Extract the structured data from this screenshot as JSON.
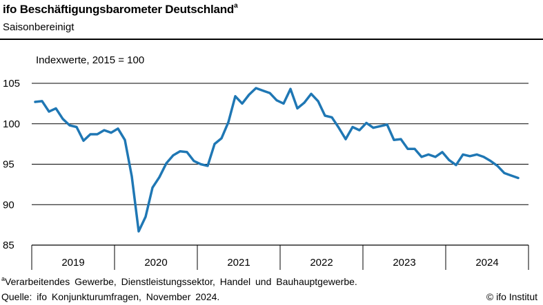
{
  "header": {
    "title": "ifo Beschäftigungsbarometer Deutschland",
    "title_sup": "a",
    "subtitle": "Saisonbereinigt"
  },
  "footer": {
    "footnote_sup": "a",
    "footnote": "Verarbeitendes Gewerbe, Dienstleistungssektor, Handel und Bauhauptgewerbe.",
    "source": "Quelle: ifo Konjunkturumfragen, November 2024.",
    "brand": "© ifo Institut"
  },
  "colors": {
    "line": "#1f77b4",
    "grid": "#000000",
    "text": "#000000"
  },
  "chart_data": {
    "type": "line",
    "title": "ifo Beschäftigungsbarometer Deutschland",
    "subtitle": "Saisonbereinigt",
    "ylabel": "Indexwerte, 2015 = 100",
    "xlabel": "",
    "ylim": [
      85,
      105
    ],
    "yticks": [
      "85",
      "90",
      "95",
      "100",
      "105"
    ],
    "year_labels": [
      "2019",
      "2020",
      "2021",
      "2022",
      "2023",
      "2024"
    ],
    "x": [
      "2019-01",
      "2019-02",
      "2019-03",
      "2019-04",
      "2019-05",
      "2019-06",
      "2019-07",
      "2019-08",
      "2019-09",
      "2019-10",
      "2019-11",
      "2019-12",
      "2020-01",
      "2020-02",
      "2020-03",
      "2020-04",
      "2020-05",
      "2020-06",
      "2020-07",
      "2020-08",
      "2020-09",
      "2020-10",
      "2020-11",
      "2020-12",
      "2021-01",
      "2021-02",
      "2021-03",
      "2021-04",
      "2021-05",
      "2021-06",
      "2021-07",
      "2021-08",
      "2021-09",
      "2021-10",
      "2021-11",
      "2021-12",
      "2022-01",
      "2022-02",
      "2022-03",
      "2022-04",
      "2022-05",
      "2022-06",
      "2022-07",
      "2022-08",
      "2022-09",
      "2022-10",
      "2022-11",
      "2022-12",
      "2023-01",
      "2023-02",
      "2023-03",
      "2023-04",
      "2023-05",
      "2023-06",
      "2023-07",
      "2023-08",
      "2023-09",
      "2023-10",
      "2023-11",
      "2023-12",
      "2024-01",
      "2024-02",
      "2024-03",
      "2024-04",
      "2024-05",
      "2024-06",
      "2024-07",
      "2024-08",
      "2024-09",
      "2024-10",
      "2024-11"
    ],
    "values": [
      102.7,
      102.8,
      101.5,
      101.9,
      100.6,
      99.8,
      99.6,
      97.9,
      98.7,
      98.7,
      99.2,
      98.9,
      99.4,
      98.0,
      93.5,
      86.7,
      88.5,
      92.1,
      93.4,
      95.1,
      96.1,
      96.6,
      96.5,
      95.4,
      95.0,
      94.8,
      97.5,
      98.2,
      100.2,
      103.4,
      102.5,
      103.6,
      104.4,
      104.1,
      103.8,
      102.9,
      102.5,
      104.3,
      101.9,
      102.6,
      103.7,
      102.8,
      101.0,
      100.8,
      99.5,
      98.1,
      99.6,
      99.2,
      100.1,
      99.5,
      99.7,
      99.9,
      98.0,
      98.1,
      96.9,
      96.9,
      95.9,
      96.2,
      95.9,
      96.5,
      95.5,
      94.9,
      96.2,
      96.0,
      96.2,
      95.9,
      95.4,
      94.8,
      93.9,
      93.6,
      93.3
    ],
    "series": [
      {
        "values_ref": "values"
      }
    ],
    "grid": true,
    "legend": "none"
  }
}
